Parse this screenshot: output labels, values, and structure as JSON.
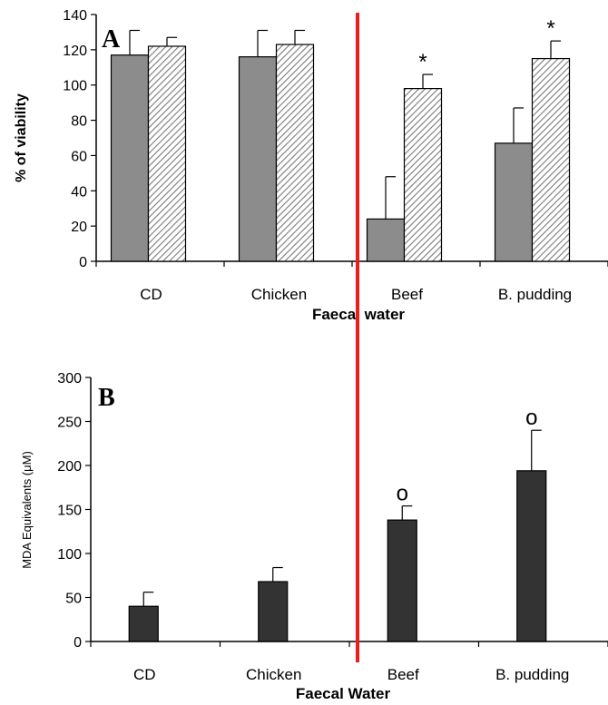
{
  "chart_data": [
    {
      "panel": "A",
      "type": "bar",
      "categories": [
        "CD",
        "Chicken",
        "Beef",
        "B. pudding"
      ],
      "xlabel": "Faecal water",
      "ylabel": "% of viability",
      "ylim": [
        0,
        140
      ],
      "yticks": [
        0,
        20,
        40,
        60,
        80,
        100,
        120,
        140
      ],
      "series": [
        {
          "values": [
            117,
            116,
            24,
            67
          ],
          "errors": [
            14,
            15,
            24,
            20
          ],
          "color": "#8c8c8c",
          "pattern": "solid"
        },
        {
          "values": [
            122,
            123,
            98,
            115
          ],
          "errors": [
            5,
            8,
            8,
            10
          ],
          "color": "#d9d9d9",
          "pattern": "hatched"
        }
      ],
      "annotations": [
        {
          "category": "Beef",
          "series": 1,
          "symbol": "*"
        },
        {
          "category": "B. pudding",
          "series": 1,
          "symbol": "*"
        }
      ]
    },
    {
      "panel": "B",
      "type": "bar",
      "categories": [
        "CD",
        "Chicken",
        "Beef",
        "B. pudding"
      ],
      "xlabel": "Faecal Water",
      "ylabel": "MDA Equivalents (μM)",
      "ylim": [
        0,
        300
      ],
      "yticks": [
        0,
        50,
        100,
        150,
        200,
        250,
        300
      ],
      "series": [
        {
          "values": [
            40,
            68,
            138,
            194
          ],
          "errors": [
            16,
            16,
            16,
            46
          ],
          "color": "#333333",
          "pattern": "solid"
        }
      ],
      "annotations": [
        {
          "category": "Beef",
          "series": 0,
          "symbol": "o"
        },
        {
          "category": "B. pudding",
          "series": 0,
          "symbol": "o"
        }
      ]
    }
  ],
  "divider_color": "#ee1c1c"
}
